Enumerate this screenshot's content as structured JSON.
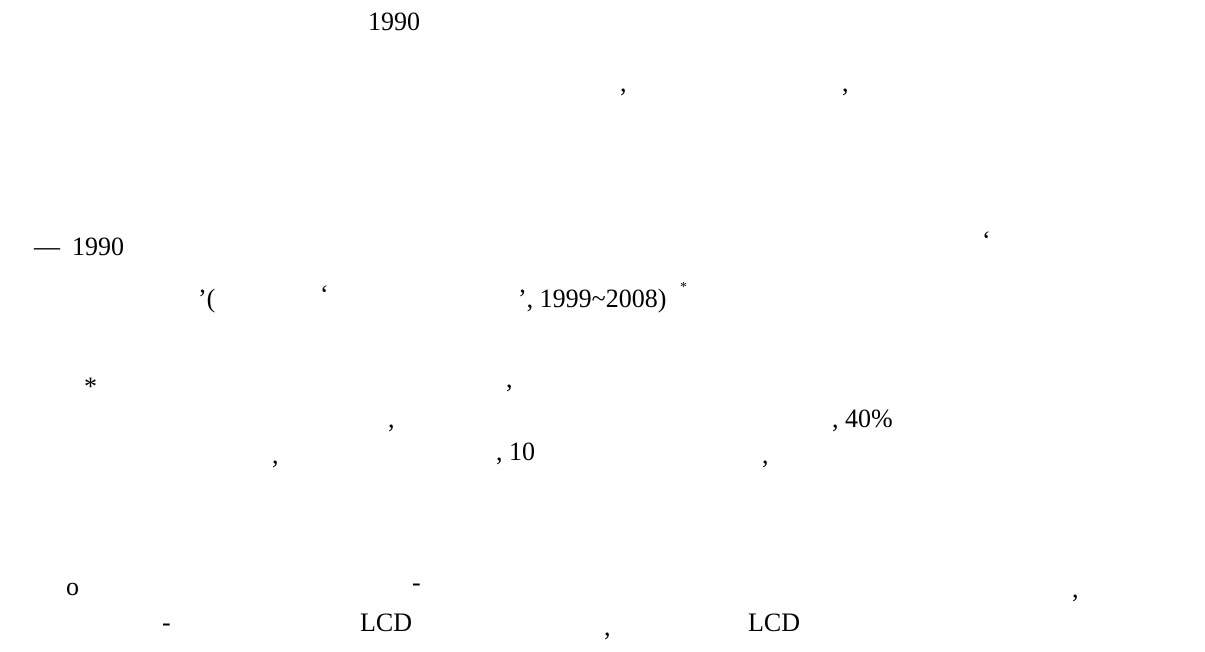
{
  "lines": [
    [
      "1990"
    ],
    [
      ",",
      ","
    ],
    [
      "—",
      "1990",
      "‘"
    ],
    [
      "’(",
      "‘",
      "’, 1999~2008)",
      "*"
    ],
    [
      "*",
      ","
    ],
    [
      ",",
      ", 40%"
    ],
    [
      ",",
      ", 10",
      ","
    ],
    [
      "o",
      "-",
      ","
    ],
    [
      "-",
      "LCD",
      ",",
      "LCD"
    ]
  ]
}
